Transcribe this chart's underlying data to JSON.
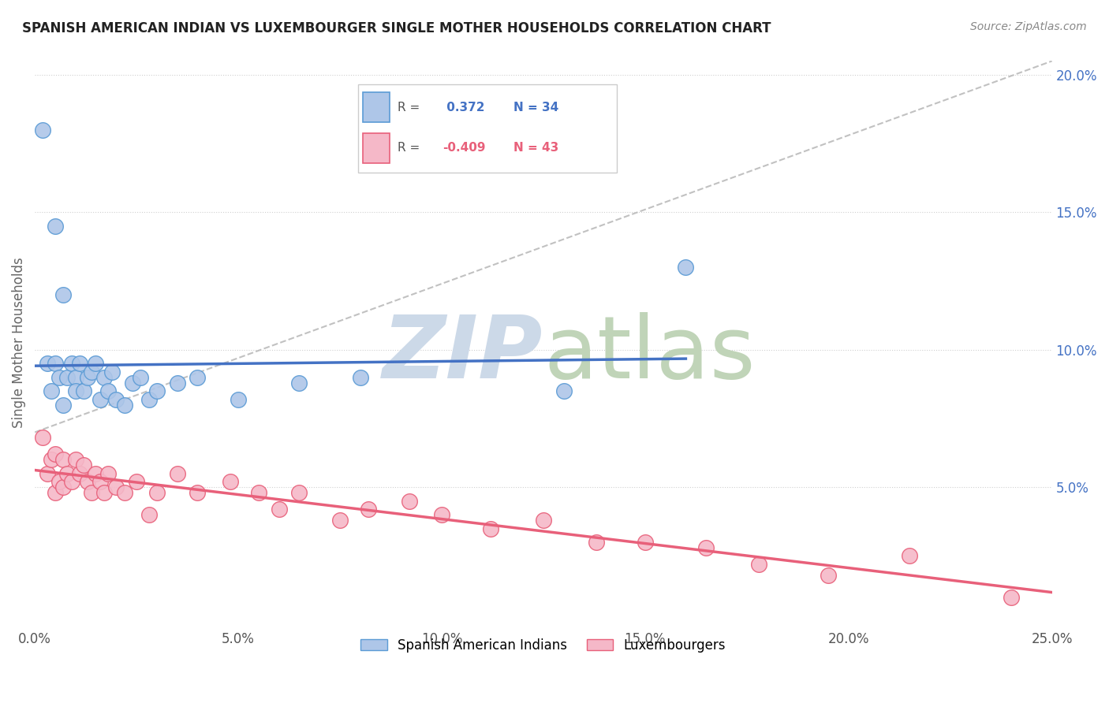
{
  "title": "SPANISH AMERICAN INDIAN VS LUXEMBOURGER SINGLE MOTHER HOUSEHOLDS CORRELATION CHART",
  "source": "Source: ZipAtlas.com",
  "ylabel": "Single Mother Households",
  "xlim": [
    0.0,
    0.25
  ],
  "ylim": [
    0.0,
    0.205
  ],
  "xticks": [
    0.0,
    0.05,
    0.1,
    0.15,
    0.2,
    0.25
  ],
  "yticks": [
    0.05,
    0.1,
    0.15,
    0.2
  ],
  "blue_R": 0.372,
  "blue_N": 34,
  "pink_R": -0.409,
  "pink_N": 43,
  "blue_fill": "#aec6e8",
  "pink_fill": "#f5b8c8",
  "blue_edge": "#5b9bd5",
  "pink_edge": "#e8607a",
  "blue_line": "#4472c4",
  "pink_line": "#e8607a",
  "gray_dash": "#bbbbbb",
  "blue_scatter_x": [
    0.002,
    0.003,
    0.004,
    0.005,
    0.005,
    0.006,
    0.007,
    0.007,
    0.008,
    0.009,
    0.01,
    0.01,
    0.011,
    0.012,
    0.013,
    0.014,
    0.015,
    0.016,
    0.017,
    0.018,
    0.019,
    0.02,
    0.022,
    0.024,
    0.026,
    0.028,
    0.03,
    0.035,
    0.04,
    0.05,
    0.065,
    0.08,
    0.13,
    0.16
  ],
  "blue_scatter_y": [
    0.18,
    0.095,
    0.085,
    0.145,
    0.095,
    0.09,
    0.08,
    0.12,
    0.09,
    0.095,
    0.09,
    0.085,
    0.095,
    0.085,
    0.09,
    0.092,
    0.095,
    0.082,
    0.09,
    0.085,
    0.092,
    0.082,
    0.08,
    0.088,
    0.09,
    0.082,
    0.085,
    0.088,
    0.09,
    0.082,
    0.088,
    0.09,
    0.085,
    0.13
  ],
  "pink_scatter_x": [
    0.002,
    0.003,
    0.004,
    0.005,
    0.005,
    0.006,
    0.007,
    0.007,
    0.008,
    0.009,
    0.01,
    0.011,
    0.012,
    0.013,
    0.014,
    0.015,
    0.016,
    0.017,
    0.018,
    0.02,
    0.022,
    0.025,
    0.028,
    0.03,
    0.035,
    0.04,
    0.048,
    0.055,
    0.06,
    0.065,
    0.075,
    0.082,
    0.092,
    0.1,
    0.112,
    0.125,
    0.138,
    0.15,
    0.165,
    0.178,
    0.195,
    0.215,
    0.24
  ],
  "pink_scatter_y": [
    0.068,
    0.055,
    0.06,
    0.062,
    0.048,
    0.052,
    0.05,
    0.06,
    0.055,
    0.052,
    0.06,
    0.055,
    0.058,
    0.052,
    0.048,
    0.055,
    0.052,
    0.048,
    0.055,
    0.05,
    0.048,
    0.052,
    0.04,
    0.048,
    0.055,
    0.048,
    0.052,
    0.048,
    0.042,
    0.048,
    0.038,
    0.042,
    0.045,
    0.04,
    0.035,
    0.038,
    0.03,
    0.03,
    0.028,
    0.022,
    0.018,
    0.025,
    0.01
  ]
}
